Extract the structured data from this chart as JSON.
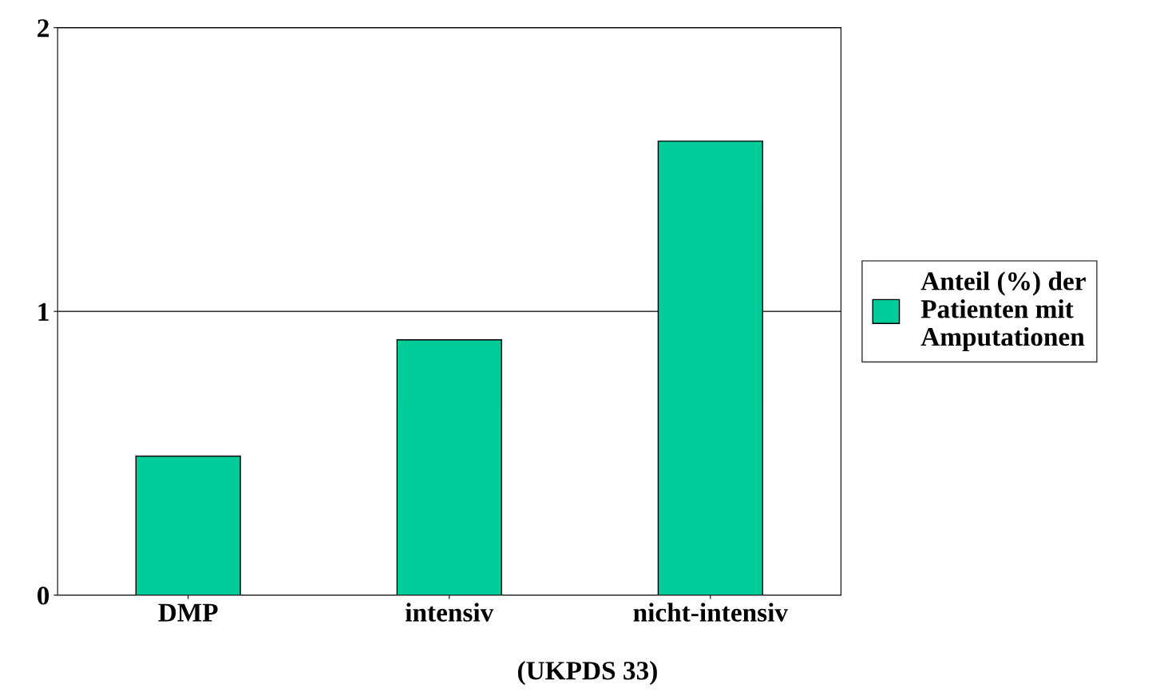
{
  "chart_data": {
    "type": "bar",
    "categories": [
      "DMP",
      "intensiv",
      "nicht-intensiv"
    ],
    "series": [
      {
        "name": "Anteil (%) der\nPatienten mit\nAmputationen",
        "color": "#00cc99",
        "values": [
          0.49,
          0.9,
          1.6
        ]
      }
    ],
    "ylim": [
      0,
      2
    ],
    "yticks": [
      0,
      1,
      2
    ],
    "grid": "y",
    "legend": "right",
    "annotations": [
      "(UKPDS 33)"
    ]
  }
}
